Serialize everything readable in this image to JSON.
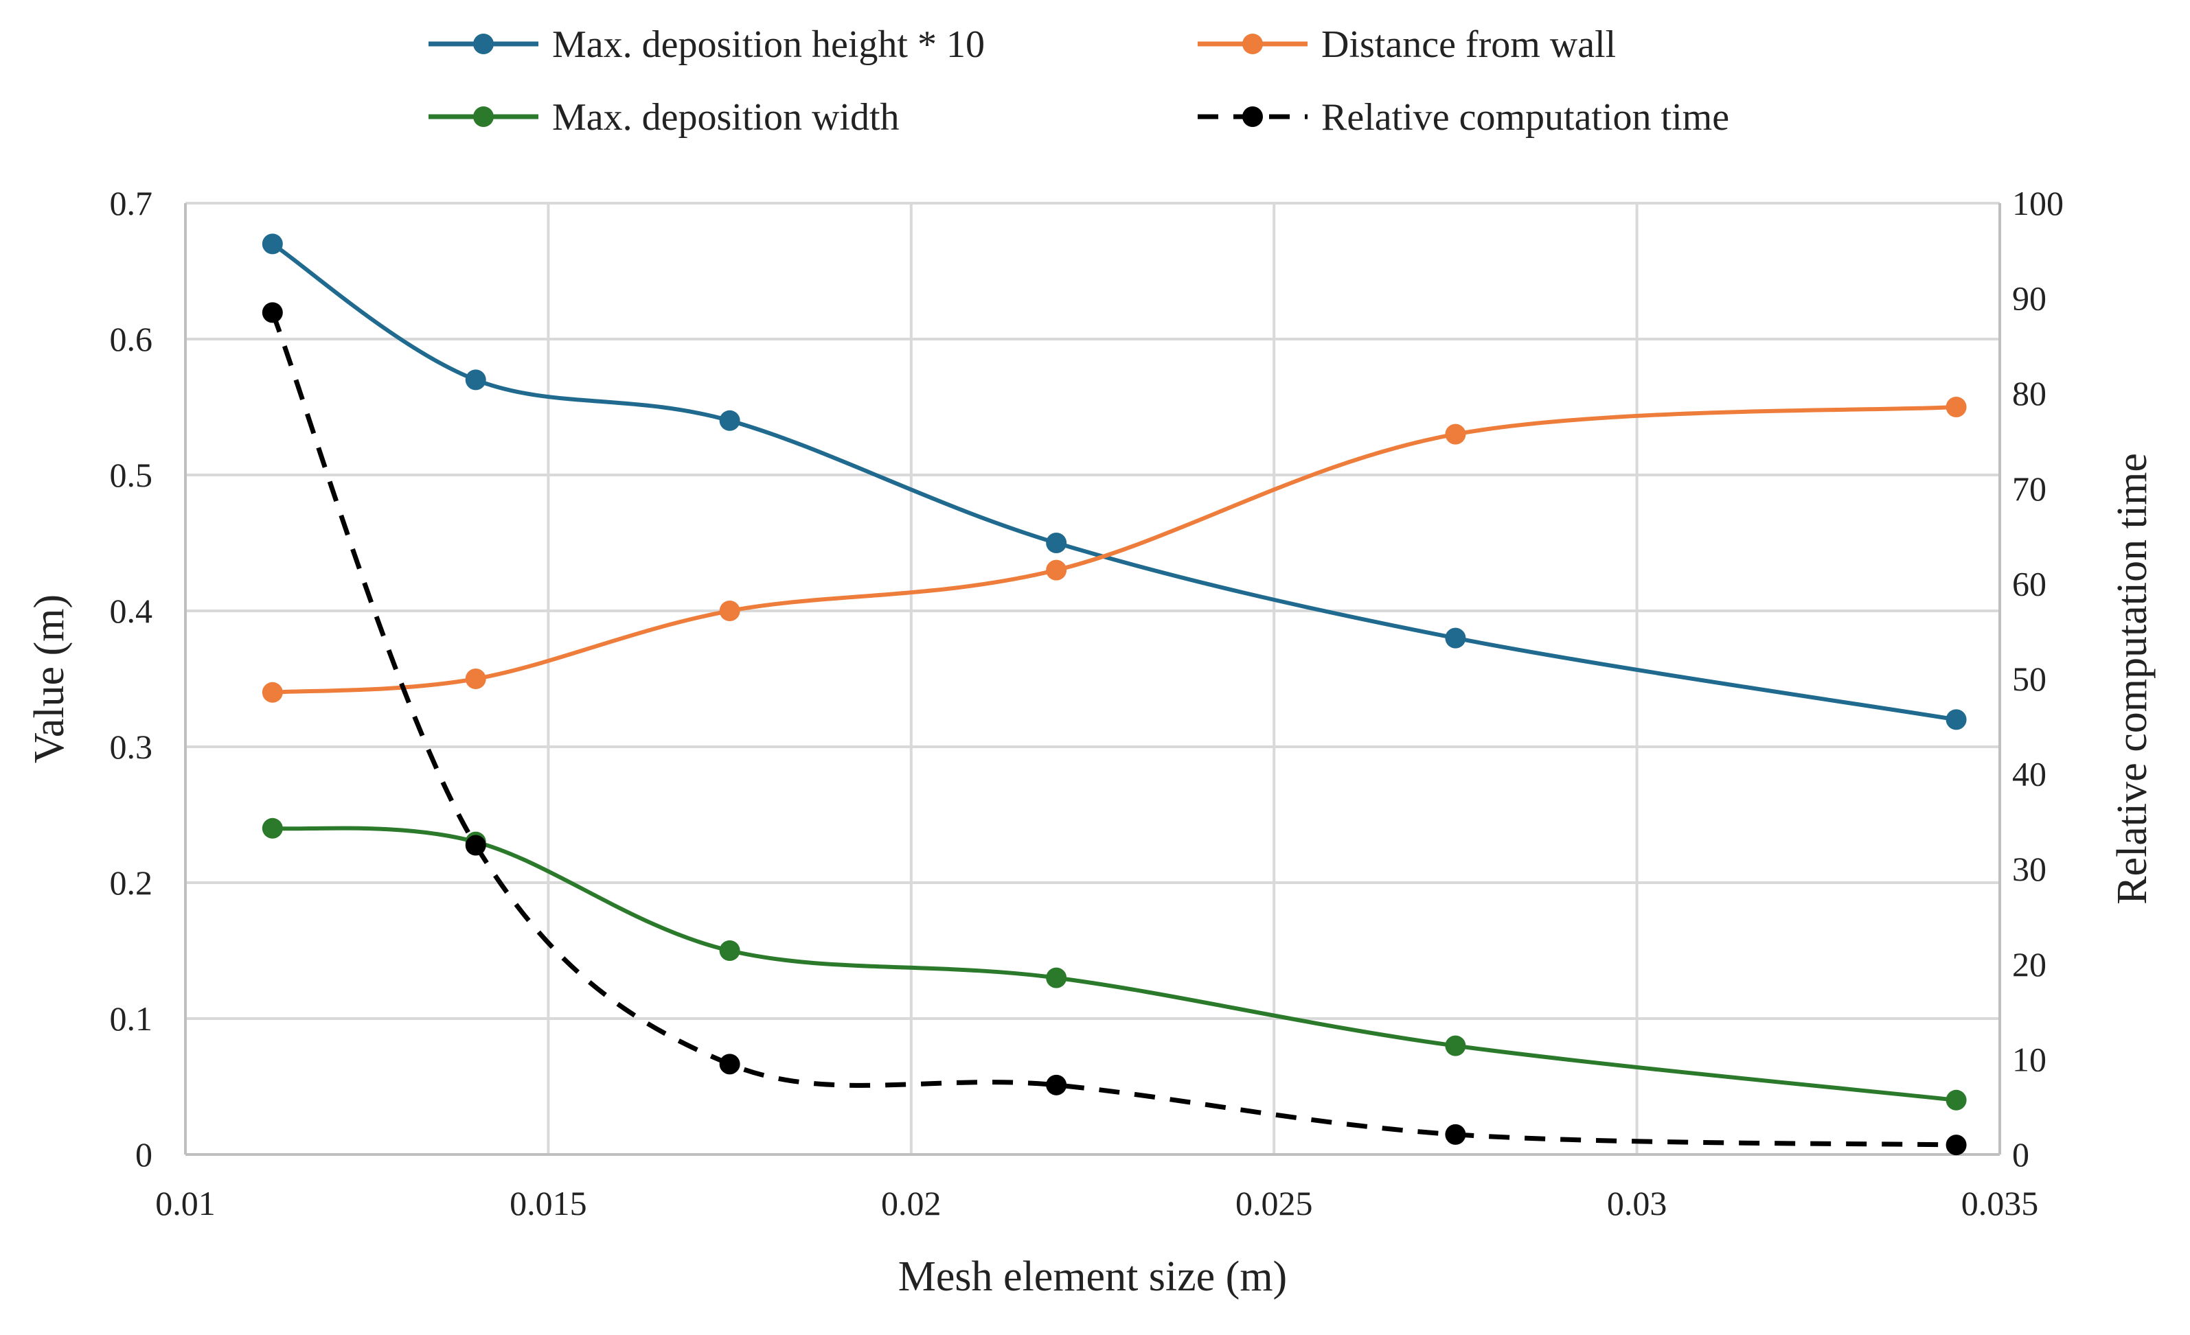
{
  "chart_data": {
    "type": "line",
    "title": "",
    "xlabel": "Mesh element size (m)",
    "ylabel": "Value (m)",
    "y2label": "Relative computation time",
    "xlim": [
      0.01,
      0.035
    ],
    "ylim": [
      0,
      0.7
    ],
    "y2lim": [
      0,
      100
    ],
    "xticks": [
      "0.01",
      "0.015",
      "0.02",
      "0.025",
      "0.03",
      "0.035"
    ],
    "xtick_values": [
      0.01,
      0.015,
      0.02,
      0.025,
      0.03,
      0.035
    ],
    "yticks": [
      "0",
      "0.1",
      "0.2",
      "0.3",
      "0.4",
      "0.5",
      "0.6",
      "0.7"
    ],
    "ytick_values": [
      0,
      0.1,
      0.2,
      0.3,
      0.4,
      0.5,
      0.6,
      0.7
    ],
    "y2ticks": [
      "0",
      "10",
      "20",
      "30",
      "40",
      "50",
      "60",
      "70",
      "80",
      "90",
      "100"
    ],
    "y2tick_values": [
      0,
      10,
      20,
      30,
      40,
      50,
      60,
      70,
      80,
      90,
      100
    ],
    "grid": true,
    "legend_position": "top",
    "x": [
      0.0112,
      0.014,
      0.0175,
      0.022,
      0.0275,
      0.0344
    ],
    "series": [
      {
        "name": "Max. deposition height * 10",
        "axis": "left",
        "color": "#1f6a8e",
        "dashed": false,
        "values": [
          0.67,
          0.57,
          0.54,
          0.45,
          0.38,
          0.32
        ]
      },
      {
        "name": "Distance from wall",
        "axis": "left",
        "color": "#ee7d3b",
        "dashed": false,
        "values": [
          0.34,
          0.35,
          0.4,
          0.43,
          0.53,
          0.55
        ]
      },
      {
        "name": "Max. deposition width",
        "axis": "left",
        "color": "#2b7a2b",
        "dashed": false,
        "values": [
          0.24,
          0.23,
          0.15,
          0.13,
          0.08,
          0.04
        ]
      },
      {
        "name": "Relative computation time",
        "axis": "right",
        "color": "#000000",
        "dashed": true,
        "values": [
          88.5,
          32.5,
          9.5,
          7.3,
          2.1,
          1.0
        ]
      }
    ]
  }
}
